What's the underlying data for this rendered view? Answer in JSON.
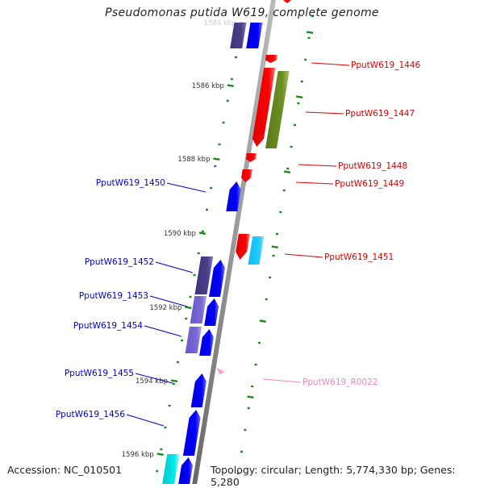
{
  "title": "Pseudomonas putida W619, complete genome",
  "footer": {
    "accession": "Accession: NC_010501",
    "summary": "Topology: circular; Length: 5,774,330 bp; Genes: 5,280"
  },
  "colors": {
    "backbone": "#888888",
    "tick": "#1a8a1a",
    "forward_gene": "#0000ff",
    "reverse_gene": "#ff0000",
    "dark_slate": "#4a3f8a",
    "light_slate": "#7b68d6",
    "olive": "#6b8e23",
    "sky": "#22ccff",
    "cyan": "#00e5e5",
    "rna": "#ff99cc",
    "label_forward": "#0000cc",
    "label_reverse": "#dd0000",
    "label_rna": "#ee88bb"
  },
  "ticks": [
    {
      "label": "1584 kbp",
      "faded": true
    },
    {
      "label": "1586 kbp"
    },
    {
      "label": "1588 kbp"
    },
    {
      "label": "1590 kbp"
    },
    {
      "label": "1592 kbp"
    },
    {
      "label": "1594 kbp"
    },
    {
      "label": "1596 kbp"
    }
  ],
  "gene_labels": [
    {
      "name": "PputW619_1446",
      "strand": "reverse"
    },
    {
      "name": "PputW619_1447",
      "strand": "reverse"
    },
    {
      "name": "PputW619_1448",
      "strand": "reverse"
    },
    {
      "name": "PputW619_1449",
      "strand": "reverse"
    },
    {
      "name": "PputW619_1450",
      "strand": "forward"
    },
    {
      "name": "PputW619_1451",
      "strand": "reverse"
    },
    {
      "name": "PputW619_1452",
      "strand": "forward"
    },
    {
      "name": "PputW619_1453",
      "strand": "forward"
    },
    {
      "name": "PputW619_1454",
      "strand": "forward"
    },
    {
      "name": "PputW619_1455",
      "strand": "forward"
    },
    {
      "name": "PputW619_1456",
      "strand": "forward"
    },
    {
      "name": "PputW619_R0022",
      "strand": "rna"
    }
  ]
}
